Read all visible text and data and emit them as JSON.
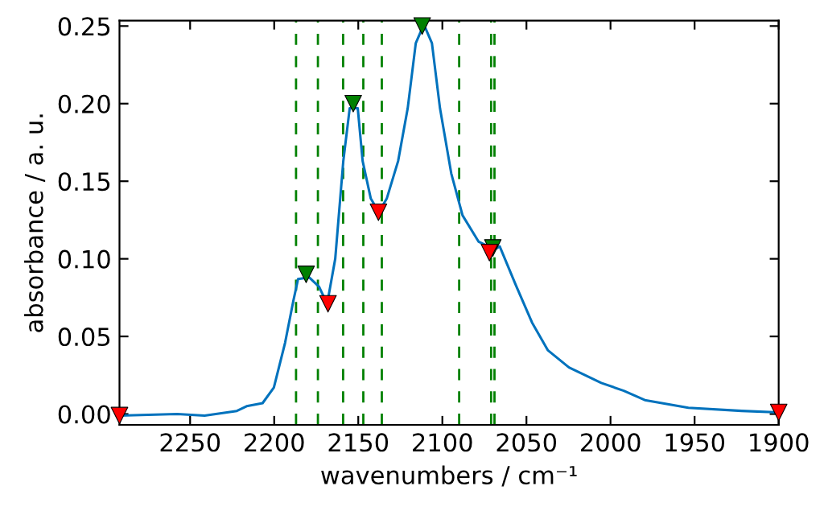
{
  "chart_data": {
    "type": "line",
    "xlabel": "wavenumbers / cm⁻¹",
    "ylabel": "absorbance / a. u.",
    "xlim": [
      2292,
      1900
    ],
    "ylim": [
      -0.007,
      0.2535
    ],
    "xticks": [
      2250,
      2200,
      2150,
      2100,
      2050,
      2000,
      1950,
      1900
    ],
    "yticks": [
      {
        "value": 0,
        "label": "0.00"
      },
      {
        "value": 0.05,
        "label": "0.05"
      },
      {
        "value": 0.1,
        "label": "0.10"
      },
      {
        "value": 0.15,
        "label": "0.15"
      },
      {
        "value": 0.2,
        "label": "0.20"
      },
      {
        "value": 0.25,
        "label": "0.25"
      }
    ],
    "grid": false,
    "legend": false,
    "series": [
      {
        "color": "#0072bd",
        "line_style": "solid",
        "x": [
          2292,
          2257.7,
          2241.4,
          2222.2,
          2216.4,
          2206.9,
          2200.2,
          2193.5,
          2188.6,
          2185.8,
          2179.1,
          2173.3,
          2168.5,
          2163.7,
          2158.9,
          2155.1,
          2150.3,
          2147.4,
          2142.6,
          2137.8,
          2133.0,
          2126.3,
          2120.6,
          2115.8,
          2111.0,
          2106.2,
          2101.4,
          2094.7,
          2088.0,
          2078.4,
          2068.8,
          2065.9,
          2056.3,
          2046.7,
          2037.2,
          2024.7,
          2005.5,
          1992.1,
          1979.6,
          1953.7,
          1922.1,
          1900
        ],
        "values": [
          -0.001,
          0.0,
          -0.001,
          0.002,
          0.005,
          0.007,
          0.017,
          0.046,
          0.073,
          0.087,
          0.088,
          0.082,
          0.071,
          0.1,
          0.163,
          0.197,
          0.197,
          0.163,
          0.139,
          0.13,
          0.139,
          0.163,
          0.197,
          0.239,
          0.251,
          0.239,
          0.197,
          0.155,
          0.128,
          0.111,
          0.106,
          0.108,
          0.083,
          0.059,
          0.041,
          0.03,
          0.02,
          0.015,
          0.009,
          0.004,
          0.002,
          0.001
        ]
      },
      {
        "type": "scatter",
        "color": "#008000",
        "marker": "triangle",
        "x": [
          2181,
          2153,
          2112,
          2070
        ],
        "values": [
          0.09,
          0.2,
          0.25,
          0.107
        ]
      },
      {
        "type": "scatter",
        "color": "#ff0000",
        "marker": "triangle",
        "x": [
          2292,
          2168,
          2138,
          2072,
          1900
        ],
        "values": [
          -0.001,
          0.071,
          0.13,
          0.104,
          0.001
        ]
      }
    ],
    "ref_lines": [
      {
        "axis": "x",
        "value": 2187,
        "label": null,
        "color": "#008000",
        "line_style": "dashed"
      },
      {
        "axis": "x",
        "value": 2174,
        "label": null,
        "color": "#008000",
        "line_style": "dashed"
      },
      {
        "axis": "x",
        "value": 2159,
        "label": null,
        "color": "#008000",
        "line_style": "dashed"
      },
      {
        "axis": "x",
        "value": 2147,
        "label": null,
        "color": "#008000",
        "line_style": "dashed"
      },
      {
        "axis": "x",
        "value": 2136,
        "label": null,
        "color": "#008000",
        "line_style": "dashed"
      },
      {
        "axis": "x",
        "value": 2090,
        "label": null,
        "color": "#008000",
        "line_style": "dashed"
      },
      {
        "axis": "x",
        "value": 2071,
        "label": null,
        "color": "#008000",
        "line_style": "dashed"
      },
      {
        "axis": "x",
        "value": 2069,
        "label": null,
        "color": "#008000",
        "line_style": "dashed"
      }
    ]
  }
}
